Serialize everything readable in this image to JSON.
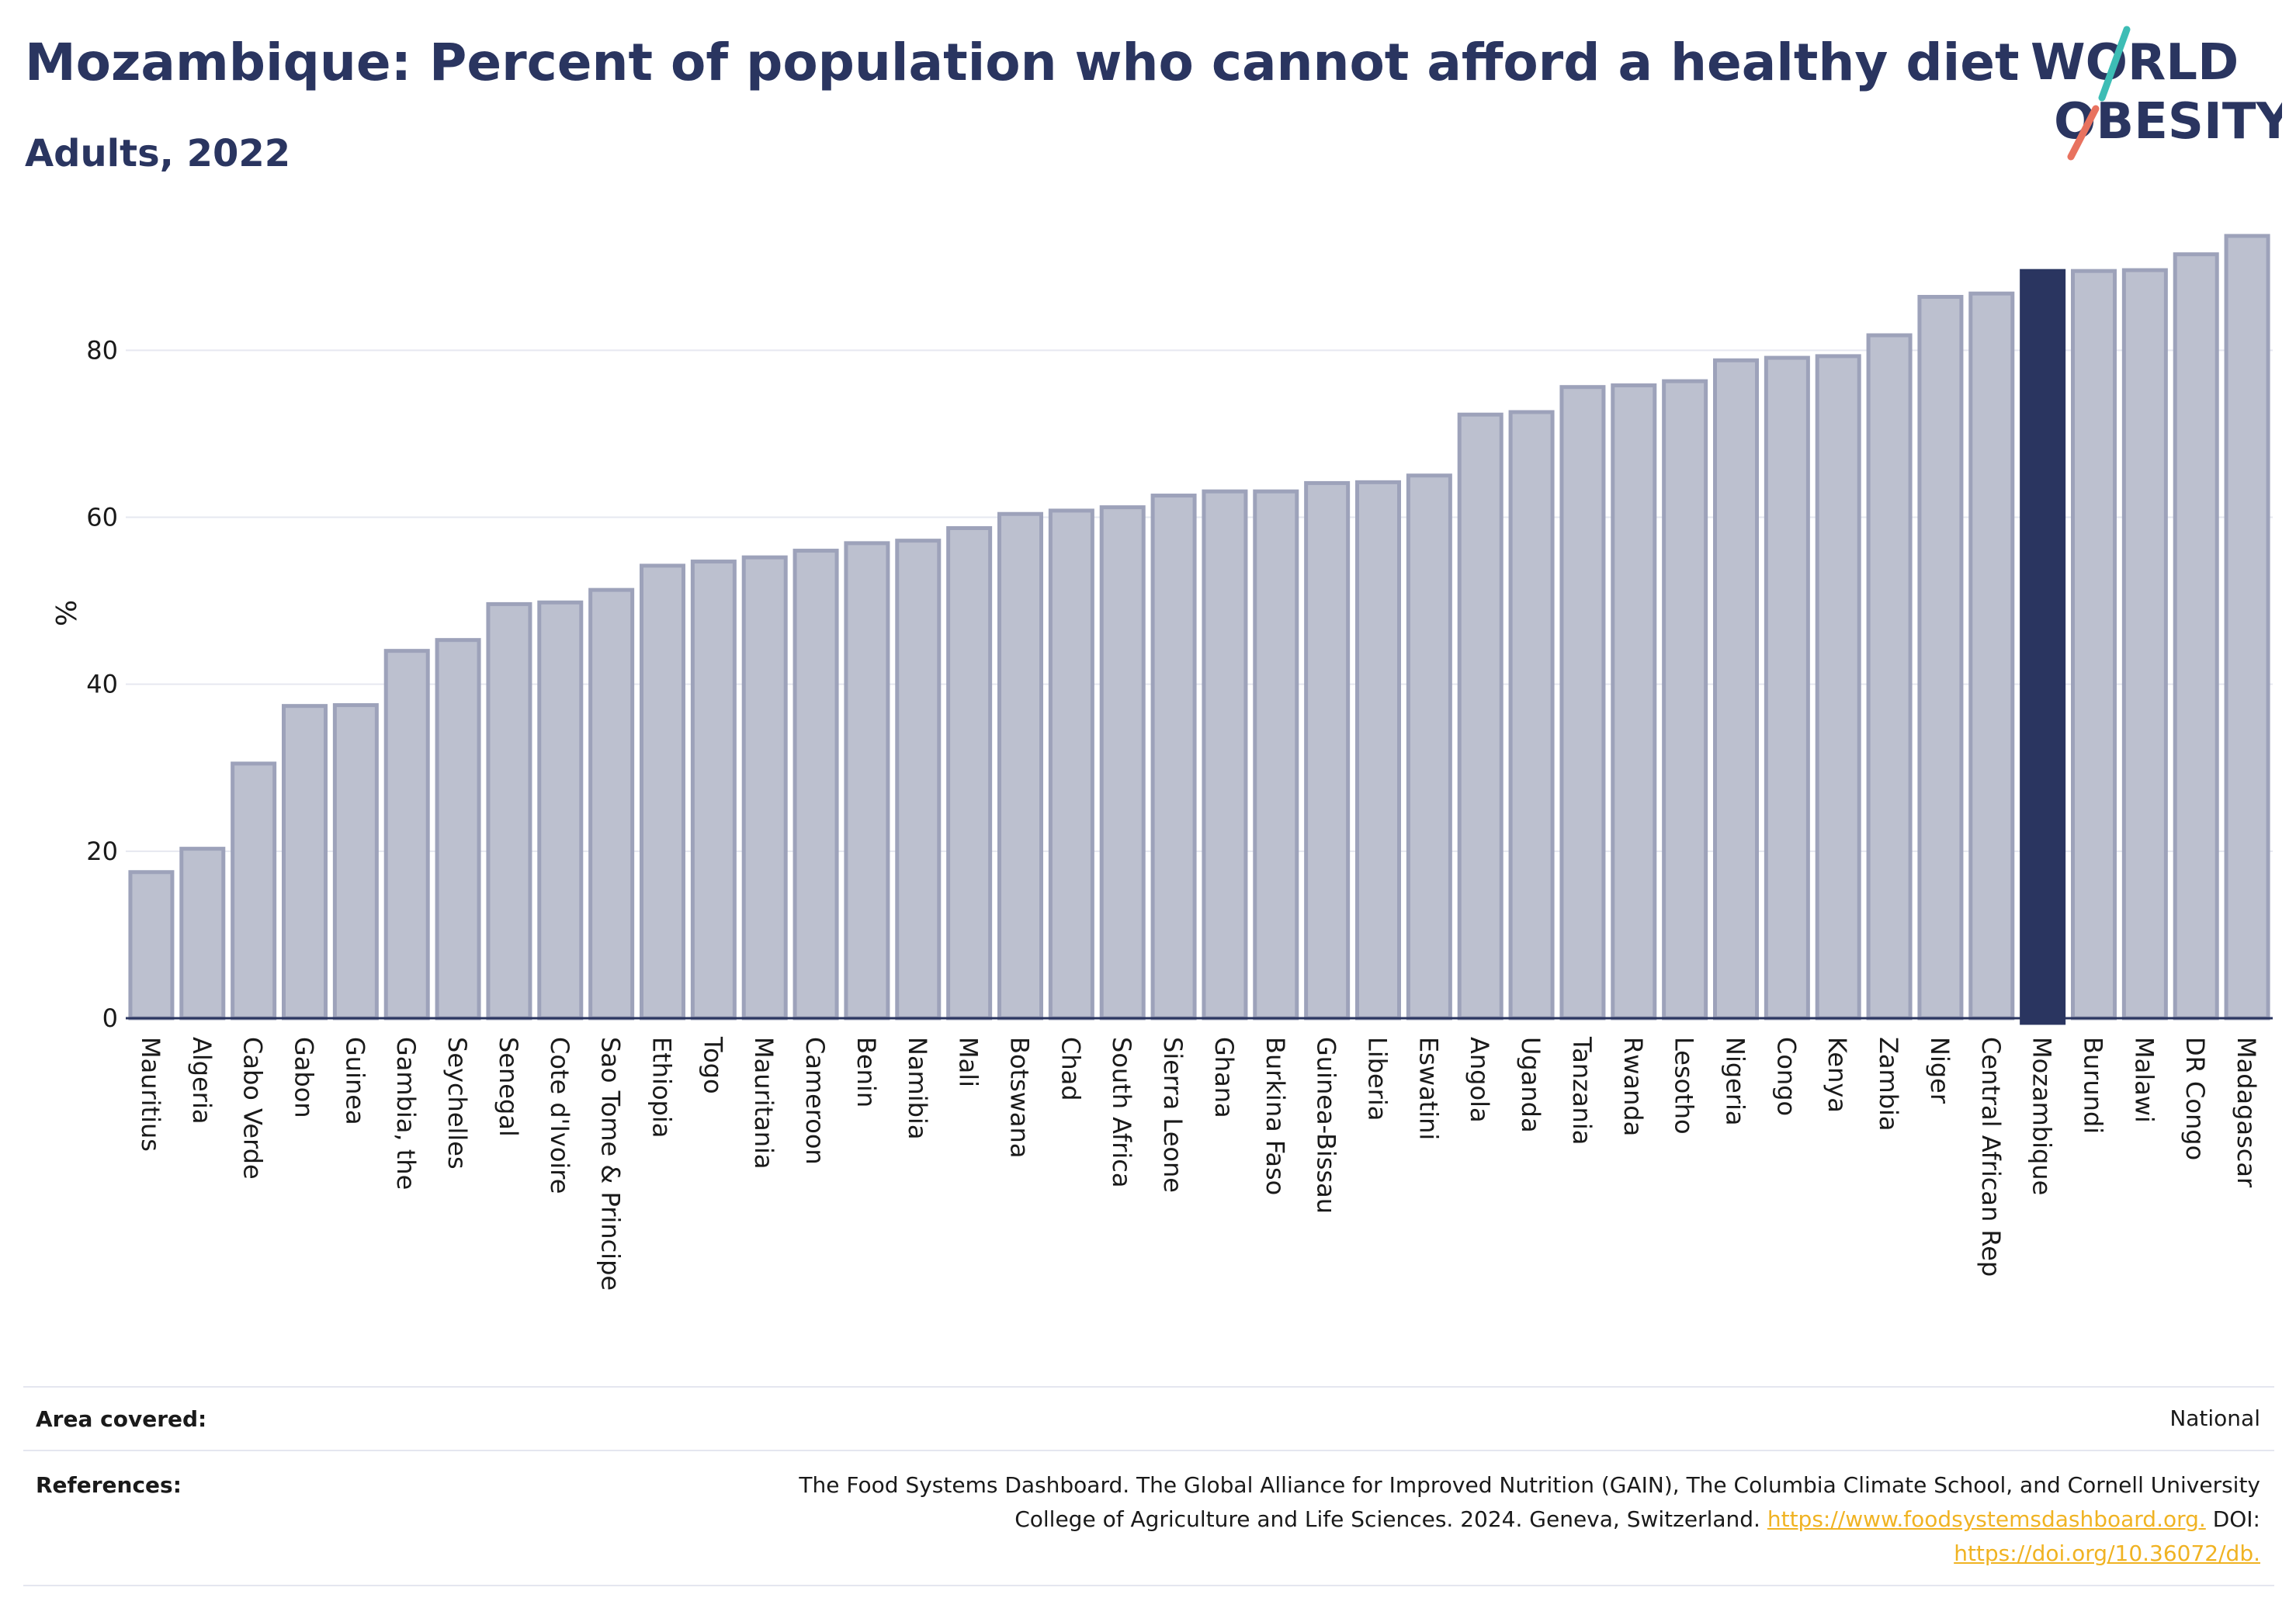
{
  "header": {
    "title": "Mozambique: Percent of population who cannot afford a healthy diet",
    "subtitle": "Adults, 2022"
  },
  "logo": {
    "line1": "WORLD",
    "line2": "OBESITY"
  },
  "colors": {
    "bar_fill": "#bcc0cf",
    "bar_stroke": "#9da2ba",
    "highlight": "#2a3560",
    "grid": "#e6e8f0",
    "logo_teal": "#3dbdb5",
    "logo_coral": "#e8725f",
    "link": "#f0b323"
  },
  "chart_data": {
    "type": "bar",
    "title": "Mozambique: Percent of population who cannot afford a healthy diet",
    "subtitle": "Adults, 2022",
    "ylabel": "%",
    "xlabel": "",
    "ylim": [
      0,
      95
    ],
    "yticks": [
      0,
      20,
      40,
      60,
      80
    ],
    "grid": true,
    "highlight": "Mozambique",
    "categories": [
      "Mauritius",
      "Algeria",
      "Cabo Verde",
      "Gabon",
      "Guinea",
      "Gambia, the",
      "Seychelles",
      "Senegal",
      "Cote d'Ivoire",
      "Sao Tome & Principe",
      "Ethiopia",
      "Togo",
      "Mauritania",
      "Cameroon",
      "Benin",
      "Namibia",
      "Mali",
      "Botswana",
      "Chad",
      "South Africa",
      "Sierra Leone",
      "Ghana",
      "Burkina Faso",
      "Guinea-Bissau",
      "Liberia",
      "Eswatini",
      "Angola",
      "Uganda",
      "Tanzania",
      "Rwanda",
      "Lesotho",
      "Nigeria",
      "Congo",
      "Kenya",
      "Zambia",
      "Niger",
      "Central African Rep",
      "Mozambique",
      "Burundi",
      "Malawi",
      "DR Congo",
      "Madagascar"
    ],
    "values": [
      17.5,
      20.3,
      30.5,
      37.4,
      37.5,
      44.0,
      45.3,
      49.6,
      49.8,
      51.3,
      54.2,
      54.7,
      55.2,
      56.0,
      56.9,
      57.2,
      58.7,
      60.4,
      60.8,
      61.2,
      62.6,
      63.1,
      63.1,
      64.1,
      64.2,
      65.0,
      72.3,
      72.6,
      75.6,
      75.8,
      76.3,
      78.8,
      79.1,
      79.3,
      81.8,
      86.4,
      86.8,
      89.5,
      89.5,
      89.6,
      91.5,
      93.7
    ]
  },
  "footer": {
    "area_label": "Area covered:",
    "area_value": "National",
    "ref_label": "References:",
    "ref_text_1": "The Food Systems Dashboard. The Global Alliance for Improved Nutrition (GAIN), The Columbia Climate School, and Cornell University",
    "ref_text_2": "College of Agriculture and Life Sciences. 2024. Geneva, Switzerland.",
    "ref_link_1": "https://www.foodsystemsdashboard.org.",
    "ref_doi_label": "DOI:",
    "ref_link_2": "https://doi.org/10.36072/db."
  }
}
